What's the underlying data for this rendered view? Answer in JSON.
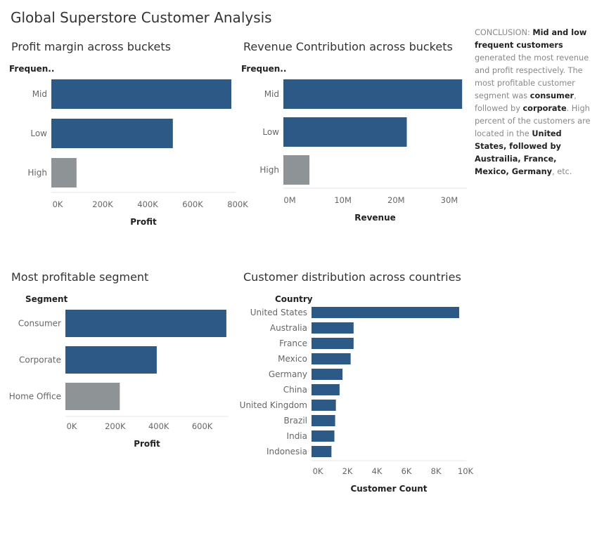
{
  "dashboard_title": "Global Superstore Customer Analysis",
  "colors": {
    "primary": "#2d5987",
    "secondary": "#8e9396"
  },
  "conclusion": [
    {
      "text": "CONCLUSION: ",
      "bold": false
    },
    {
      "text": "Mid and low frequent customers",
      "bold": true
    },
    {
      "text": " generated the most revenue and profit respectively. The most profitable customer segment was ",
      "bold": false
    },
    {
      "text": "consumer",
      "bold": true
    },
    {
      "text": ", followed by ",
      "bold": false
    },
    {
      "text": "corporate",
      "bold": true
    },
    {
      "text": ". High percent of the customers are located in the ",
      "bold": false
    },
    {
      "text": "United States, followed by Austrailia, France, Mexico, Germany",
      "bold": true
    },
    {
      "text": ", etc.",
      "bold": false
    }
  ],
  "chart_data": [
    {
      "type": "bar",
      "title": "Profit margin across buckets",
      "row_header": "Frequen..",
      "categories": [
        "Mid",
        "Low",
        "High"
      ],
      "values": [
        800000,
        540000,
        112000
      ],
      "highlight": [
        true,
        true,
        false
      ],
      "xlabel": "Profit",
      "xlim": [
        0,
        850000
      ],
      "ticks": [
        0,
        200000,
        400000,
        600000,
        800000
      ],
      "tick_labels": [
        "0K",
        "200K",
        "400K",
        "600K",
        "800K"
      ],
      "grid": false
    },
    {
      "type": "bar",
      "title": "Revenue Contribution across buckets",
      "row_header": "Frequen..",
      "categories": [
        "Mid",
        "Low",
        "High"
      ],
      "values": [
        33600000,
        23200000,
        4900000
      ],
      "highlight": [
        true,
        true,
        false
      ],
      "xlabel": "Revenue",
      "xlim": [
        0,
        34500000
      ],
      "ticks": [
        0,
        10000000,
        20000000,
        30000000
      ],
      "tick_labels": [
        "0M",
        "10M",
        "20M",
        "30M"
      ],
      "grid": false
    },
    {
      "type": "bar",
      "title": "Most profitable segment",
      "row_header": "Segment",
      "categories": [
        "Consumer",
        "Corporate",
        "Home Office"
      ],
      "values": [
        740000,
        420000,
        250000
      ],
      "highlight": [
        true,
        true,
        false
      ],
      "xlabel": "Profit",
      "xlim": [
        0,
        750000
      ],
      "ticks": [
        0,
        200000,
        400000,
        600000
      ],
      "tick_labels": [
        "0K",
        "200K",
        "400K",
        "600K"
      ],
      "grid": false
    },
    {
      "type": "bar",
      "title": "Customer distribution across countries",
      "row_header": "Country",
      "categories": [
        "United States",
        "Australia",
        "France",
        "Mexico",
        "Germany",
        "China",
        "United Kingdom",
        "Brazil",
        "India",
        "Indonesia"
      ],
      "values": [
        10000,
        2850,
        2850,
        2650,
        2100,
        1900,
        1650,
        1600,
        1550,
        1350
      ],
      "highlight": [
        true,
        true,
        true,
        true,
        true,
        true,
        true,
        true,
        true,
        true
      ],
      "xlabel": "Customer Count",
      "xlim": [
        0,
        10000
      ],
      "ticks": [
        0,
        2000,
        4000,
        6000,
        8000,
        10000
      ],
      "tick_labels": [
        "0K",
        "2K",
        "4K",
        "6K",
        "8K",
        "10K"
      ],
      "grid": false
    }
  ]
}
